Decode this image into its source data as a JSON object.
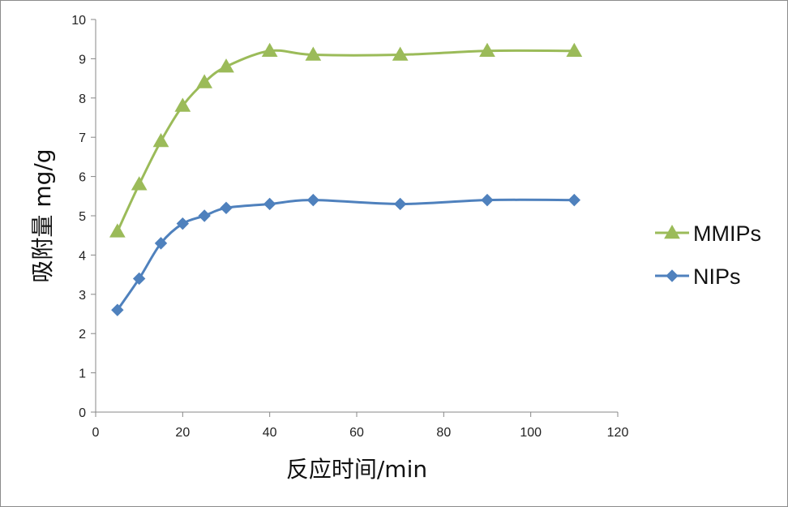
{
  "chart_data": {
    "type": "line",
    "title": "",
    "xlabel": "反应时间/min",
    "ylabel": "吸附量 mg/g",
    "xlim": [
      0,
      120
    ],
    "ylim": [
      0,
      10
    ],
    "xticks": [
      0,
      20,
      40,
      60,
      80,
      100,
      120
    ],
    "yticks": [
      0,
      1,
      2,
      3,
      4,
      5,
      6,
      7,
      8,
      9,
      10
    ],
    "grid": false,
    "legend_position": "right",
    "smooth": true,
    "series": [
      {
        "name": "MMIPs",
        "color": "#9bbb59",
        "marker": "triangle",
        "x": [
          5,
          10,
          15,
          20,
          25,
          30,
          40,
          50,
          70,
          90,
          110
        ],
        "y": [
          4.6,
          5.8,
          6.9,
          7.8,
          8.4,
          8.8,
          9.2,
          9.1,
          9.1,
          9.2,
          9.2
        ]
      },
      {
        "name": "NIPs",
        "color": "#4f81bd",
        "marker": "diamond",
        "x": [
          5,
          10,
          15,
          20,
          25,
          30,
          40,
          50,
          70,
          90,
          110
        ],
        "y": [
          2.6,
          3.4,
          4.3,
          4.8,
          5.0,
          5.2,
          5.3,
          5.4,
          5.3,
          5.4,
          5.4
        ]
      }
    ]
  }
}
